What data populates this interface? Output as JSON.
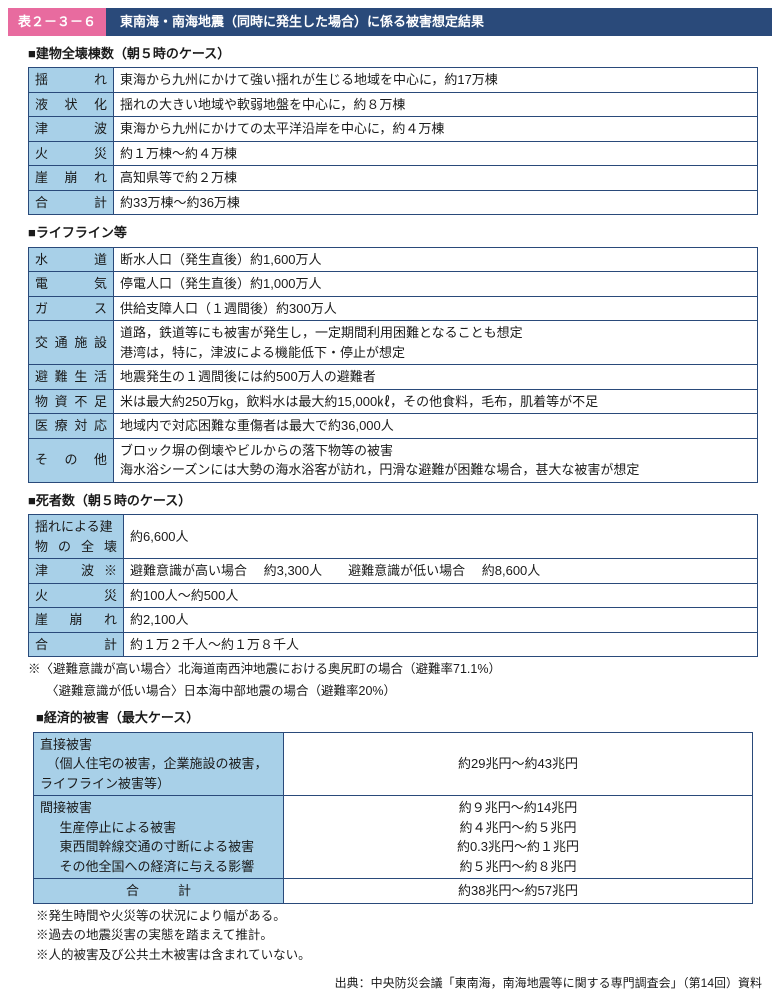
{
  "header": {
    "tab": "表２－３－６",
    "title": "東南海・南海地震（同時に発生した場合）に係る被害想定結果"
  },
  "sectionA": {
    "heading": "■建物全壊棟数（朝５時のケース）",
    "rows": [
      {
        "label": "揺　れ",
        "value": "東海から九州にかけて強い揺れが生じる地域を中心に，約17万棟"
      },
      {
        "label": "液状化",
        "value": "揺れの大きい地域や軟弱地盤を中心に，約８万棟"
      },
      {
        "label": "津　波",
        "value": "東海から九州にかけての太平洋沿岸を中心に，約４万棟"
      },
      {
        "label": "火　災",
        "value": "約１万棟～約４万棟"
      },
      {
        "label": "崖崩れ",
        "value": "高知県等で約２万棟"
      },
      {
        "label": "合　計",
        "value": "約33万棟～約36万棟"
      }
    ]
  },
  "sectionB": {
    "heading": "■ライフライン等",
    "rows": [
      {
        "label": "水　　道",
        "value": "断水人口（発生直後）約1,600万人"
      },
      {
        "label": "電　　気",
        "value": "停電人口（発生直後）約1,000万人"
      },
      {
        "label": "ガ　　ス",
        "value": "供給支障人口（１週間後）約300万人"
      },
      {
        "label": "交通施設",
        "value": "道路，鉄道等にも被害が発生し，一定期間利用困難となることも想定\n港湾は，特に，津波による機能低下・停止が想定"
      },
      {
        "label": "避難生活",
        "value": "地震発生の１週間後には約500万人の避難者"
      },
      {
        "label": "物資不足",
        "value": "米は最大約250万kg，飲料水は最大約15,000㎘，その他食料，毛布，肌着等が不足"
      },
      {
        "label": "医療対応",
        "value": "地域内で対応困難な重傷者は最大で約36,000人"
      },
      {
        "label": "そ の 他",
        "value": "ブロック塀の倒壊やビルからの落下物等の被害\n海水浴シーズンには大勢の海水浴客が訪れ，円滑な避難が困難な場合，甚大な被害が想定"
      }
    ]
  },
  "sectionC": {
    "heading": "■死者数（朝５時のケース）",
    "rows": [
      {
        "label": "揺れによる建物の全壊",
        "value": "約6,600人"
      },
      {
        "label": "津　波※",
        "value": "避難意識が高い場合　 約3,300人　　避難意識が低い場合　 約8,600人"
      },
      {
        "label": "火　　災",
        "value": "約100人～約500人"
      },
      {
        "label": "崖 崩 れ",
        "value": "約2,100人"
      },
      {
        "label": "合　　計",
        "value": "約１万２千人～約１万８千人"
      }
    ],
    "note1": "※〈避難意識が高い場合〉北海道南西沖地震における奥尻町の場合（避難率71.1%）",
    "note2": "〈避難意識が低い場合〉日本海中部地震の場合（避難率20%）"
  },
  "sectionD": {
    "heading": "■経済的被害（最大ケース）",
    "row1": {
      "label": "直接被害\n　（個人住宅の被害，企業施設の被害，ライフライン被害等）",
      "value": "約29兆円～約43兆円"
    },
    "row2": {
      "lhead": "間接被害",
      "l1": "生産停止による被害",
      "v1": "約９兆円～約14兆円",
      "l2": "東西間幹線交通の寸断による被害",
      "v2": "約４兆円～約５兆円",
      "l3": "その他全国への経済に与える影響",
      "v3": "約0.3兆円～約１兆円",
      "vtop": "約５兆円～約８兆円"
    },
    "row3": {
      "label": "合　　　計",
      "value": "約38兆円～約57兆円"
    },
    "n1": "※発生時間や火災等の状況により幅がある。",
    "n2": "※過去の地震災害の実態を踏まえて推計。",
    "n3": "※人的被害及び公共土木被害は含まれていない。"
  },
  "source": "出典：中央防災会議「東南海，南海地震等に関する専門調査会」（第14回）資料"
}
